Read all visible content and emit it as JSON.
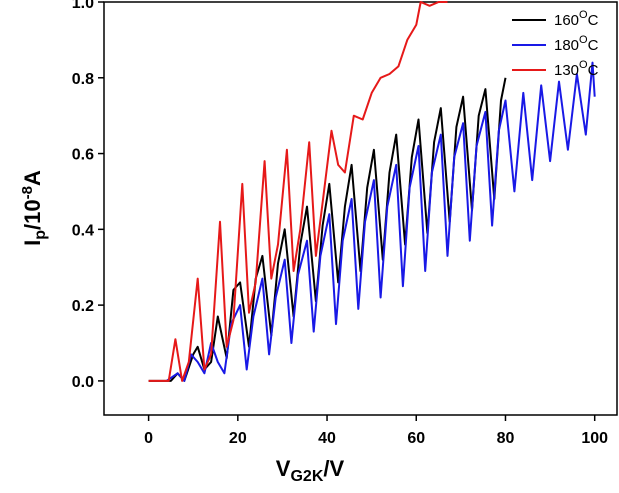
{
  "chart_data": {
    "type": "line",
    "xlabel": {
      "main": "V",
      "sub": "G2K",
      "suffix": "/V"
    },
    "ylabel": {
      "main": "I",
      "sub": "p",
      "mid": "/10",
      "sup": "-8",
      "suffix": "A"
    },
    "xlim": [
      -10,
      105
    ],
    "ylim": [
      -0.09,
      1.0
    ],
    "xticks": [
      0,
      20,
      40,
      60,
      80,
      100
    ],
    "yticks": [
      0.0,
      0.2,
      0.4,
      0.6,
      0.8,
      1.0
    ],
    "xtick_labels": [
      "0",
      "20",
      "40",
      "60",
      "80",
      "100"
    ],
    "ytick_labels": [
      "0.0",
      "0.2",
      "0.4",
      "0.6",
      "0.8",
      "1.0"
    ],
    "legend_position": "top-right",
    "series": [
      {
        "name": "160°C",
        "legend_main": "160",
        "legend_sup": "O",
        "legend_unit": "C",
        "color": "#000000",
        "x": [
          0,
          5,
          6.5,
          8,
          10,
          11,
          12.5,
          14,
          15.5,
          17.5,
          19,
          20.5,
          22.5,
          24,
          25.5,
          27.5,
          29,
          30.5,
          32.5,
          34,
          35.5,
          37.5,
          39,
          40.5,
          42.5,
          44,
          45.5,
          47.5,
          49,
          50.5,
          52.5,
          54,
          55.5,
          57.5,
          59,
          60.5,
          62.5,
          64,
          65.5,
          67.5,
          69,
          70.5,
          72.5,
          74,
          75.5,
          77.5,
          79,
          80
        ],
        "y": [
          0,
          0,
          0.02,
          0,
          0.07,
          0.09,
          0.03,
          0.05,
          0.17,
          0.06,
          0.24,
          0.26,
          0.09,
          0.27,
          0.33,
          0.12,
          0.31,
          0.4,
          0.17,
          0.36,
          0.46,
          0.21,
          0.41,
          0.52,
          0.26,
          0.46,
          0.57,
          0.29,
          0.51,
          0.61,
          0.32,
          0.55,
          0.65,
          0.36,
          0.59,
          0.69,
          0.39,
          0.63,
          0.72,
          0.42,
          0.67,
          0.75,
          0.45,
          0.7,
          0.77,
          0.48,
          0.74,
          0.8
        ]
      },
      {
        "name": "180°C",
        "legend_main": "180",
        "legend_sup": "O",
        "legend_unit": "C",
        "color": "#1919e6",
        "x": [
          4,
          6.5,
          8,
          9.5,
          11,
          12.5,
          14,
          15.5,
          17,
          18.5,
          20.5,
          22,
          23.5,
          25.5,
          27,
          28.5,
          30.5,
          32,
          33.5,
          35.5,
          37,
          38.5,
          40.5,
          42,
          43.5,
          45.5,
          47,
          48.5,
          50.5,
          52,
          53.5,
          55.5,
          57,
          58.5,
          60.5,
          62,
          63.5,
          65.5,
          67,
          68.5,
          70.5,
          72,
          73.5,
          75.5,
          77,
          78.5,
          80,
          82,
          84,
          86,
          88,
          90,
          92,
          94,
          96,
          98,
          99.5,
          100
        ],
        "y": [
          0,
          0.02,
          0,
          0.07,
          0.05,
          0.02,
          0.1,
          0.05,
          0.02,
          0.15,
          0.2,
          0.03,
          0.17,
          0.27,
          0.07,
          0.22,
          0.32,
          0.1,
          0.28,
          0.37,
          0.13,
          0.33,
          0.44,
          0.15,
          0.37,
          0.48,
          0.19,
          0.42,
          0.53,
          0.22,
          0.46,
          0.57,
          0.25,
          0.51,
          0.62,
          0.29,
          0.55,
          0.65,
          0.33,
          0.59,
          0.68,
          0.37,
          0.62,
          0.71,
          0.41,
          0.66,
          0.74,
          0.5,
          0.76,
          0.53,
          0.78,
          0.58,
          0.79,
          0.61,
          0.81,
          0.65,
          0.84,
          0.75
        ]
      },
      {
        "name": "130°C",
        "legend_main": "130",
        "legend_sup": "O",
        "legend_unit": "C",
        "color": "#e61919",
        "x": [
          0,
          4.5,
          6,
          7.5,
          9,
          11,
          12.5,
          14,
          16,
          17.5,
          19,
          21,
          22.5,
          24,
          26,
          27.5,
          29,
          31,
          32.5,
          34,
          36,
          37.5,
          39,
          41,
          42.5,
          44,
          46,
          48,
          50,
          52,
          54,
          56,
          58,
          60,
          61,
          63,
          65,
          67
        ],
        "y": [
          0,
          0,
          0.11,
          0,
          0.05,
          0.27,
          0.03,
          0.07,
          0.42,
          0.09,
          0.16,
          0.52,
          0.18,
          0.26,
          0.58,
          0.27,
          0.36,
          0.61,
          0.29,
          0.4,
          0.63,
          0.33,
          0.47,
          0.66,
          0.57,
          0.55,
          0.7,
          0.69,
          0.76,
          0.8,
          0.81,
          0.83,
          0.9,
          0.94,
          1.0,
          0.99,
          1.0,
          1.0
        ]
      }
    ]
  }
}
